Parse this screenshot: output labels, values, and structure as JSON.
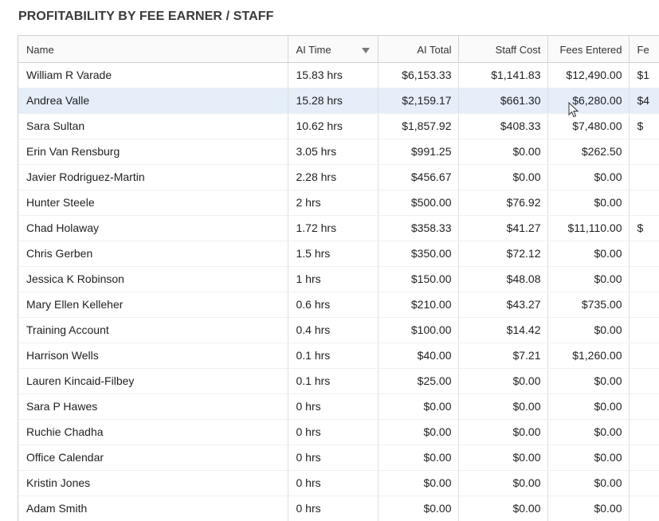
{
  "report": {
    "title": "PROFITABILITY BY FEE EARNER / STAFF"
  },
  "table": {
    "columns": [
      {
        "label": "Name",
        "align": "left"
      },
      {
        "label": "AI Time",
        "align": "left",
        "sort_icon": "sort-descending-icon"
      },
      {
        "label": "AI Total",
        "align": "right"
      },
      {
        "label": "Staff Cost",
        "align": "right"
      },
      {
        "label": "Fees Entered",
        "align": "right"
      },
      {
        "label": "Fe",
        "align": "left"
      }
    ],
    "selected_row_index": 1,
    "rows": [
      [
        "William R Varade",
        "15.83 hrs",
        "$6,153.33",
        "$1,141.83",
        "$12,490.00",
        "$1"
      ],
      [
        "Andrea Valle",
        "15.28 hrs",
        "$2,159.17",
        "$661.30",
        "$6,280.00",
        "$4"
      ],
      [
        "Sara Sultan",
        "10.62 hrs",
        "$1,857.92",
        "$408.33",
        "$7,480.00",
        "$"
      ],
      [
        "Erin Van Rensburg",
        "3.05 hrs",
        "$991.25",
        "$0.00",
        "$262.50",
        ""
      ],
      [
        "Javier Rodriguez-Martin",
        "2.28 hrs",
        "$456.67",
        "$0.00",
        "$0.00",
        ""
      ],
      [
        "Hunter Steele",
        "2 hrs",
        "$500.00",
        "$76.92",
        "$0.00",
        ""
      ],
      [
        "Chad Holaway",
        "1.72 hrs",
        "$358.33",
        "$41.27",
        "$11,110.00",
        "$"
      ],
      [
        "Chris Gerben",
        "1.5 hrs",
        "$350.00",
        "$72.12",
        "$0.00",
        ""
      ],
      [
        "Jessica K Robinson",
        "1 hrs",
        "$150.00",
        "$48.08",
        "$0.00",
        ""
      ],
      [
        "Mary Ellen Kelleher",
        "0.6 hrs",
        "$210.00",
        "$43.27",
        "$735.00",
        ""
      ],
      [
        "Training Account",
        "0.4 hrs",
        "$100.00",
        "$14.42",
        "$0.00",
        ""
      ],
      [
        "Harrison Wells",
        "0.1 hrs",
        "$40.00",
        "$7.21",
        "$1,260.00",
        ""
      ],
      [
        "Lauren Kincaid-Filbey",
        "0.1 hrs",
        "$25.00",
        "$0.00",
        "$0.00",
        ""
      ],
      [
        "Sara P Hawes",
        "0 hrs",
        "$0.00",
        "$0.00",
        "$0.00",
        ""
      ],
      [
        "Ruchie Chadha",
        "0 hrs",
        "$0.00",
        "$0.00",
        "$0.00",
        ""
      ],
      [
        "Office Calendar",
        "0 hrs",
        "$0.00",
        "$0.00",
        "$0.00",
        ""
      ],
      [
        "Kristin Jones",
        "0 hrs",
        "$0.00",
        "$0.00",
        "$0.00",
        ""
      ],
      [
        "Adam Smith",
        "0 hrs",
        "$0.00",
        "$0.00",
        "$0.00",
        ""
      ]
    ]
  },
  "colors": {
    "selected_row": "#e5eef9",
    "header_bg": "#fafafa",
    "grid_line": "#dedede"
  }
}
